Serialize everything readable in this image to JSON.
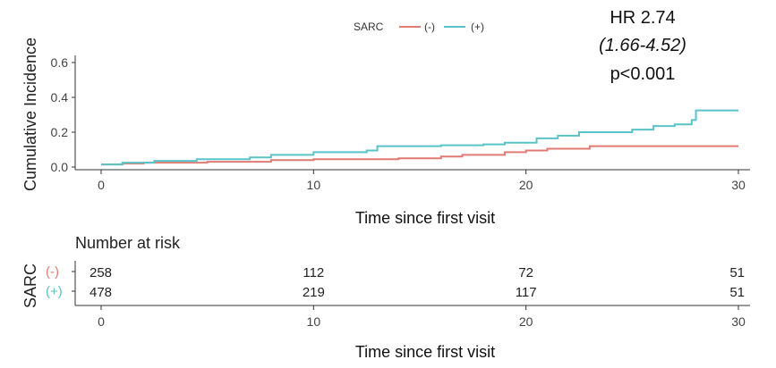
{
  "chart_data": {
    "type": "line",
    "ylabel": "Cumulative Incidence",
    "xlabel": "Time since first visit",
    "xlim": [
      0,
      30
    ],
    "ylim": [
      0,
      0.6
    ],
    "x_ticks": [
      "0",
      "10",
      "20",
      "30"
    ],
    "y_ticks": [
      "0.0",
      "0.2",
      "0.4",
      "0.6"
    ],
    "legend": {
      "title": "SARC",
      "position": "top",
      "entries": [
        "(-)",
        "(+)"
      ]
    },
    "annotation": {
      "hr": "HR 2.74",
      "ci": "(1.66-4.52)",
      "p": "p<0.001"
    },
    "series": [
      {
        "name": "(-)",
        "color": "#e07b74",
        "step": true,
        "x": [
          0,
          1,
          2,
          5,
          8,
          10,
          14,
          16,
          17,
          19,
          20,
          21,
          23,
          30
        ],
        "y": [
          0.015,
          0.02,
          0.025,
          0.03,
          0.04,
          0.045,
          0.05,
          0.06,
          0.07,
          0.085,
          0.095,
          0.105,
          0.12,
          0.12
        ]
      },
      {
        "name": "(+)",
        "color": "#5ac3c8",
        "step": true,
        "x": [
          0,
          1,
          2.5,
          4.5,
          7,
          8,
          10,
          12.5,
          13,
          16,
          18,
          19,
          20.5,
          21.5,
          22.5,
          25,
          26,
          27,
          27.8,
          28,
          30
        ],
        "y": [
          0.015,
          0.025,
          0.035,
          0.045,
          0.055,
          0.07,
          0.085,
          0.095,
          0.12,
          0.125,
          0.13,
          0.14,
          0.165,
          0.18,
          0.2,
          0.215,
          0.235,
          0.245,
          0.27,
          0.325,
          0.325
        ]
      }
    ]
  },
  "risk_table": {
    "title": "Number at risk",
    "group_label": "SARC",
    "xlabel": "Time since first visit",
    "x_ticks": [
      "0",
      "10",
      "20",
      "30"
    ],
    "rows": [
      {
        "name": "(-)",
        "color": "#e07b74",
        "values": [
          "258",
          "112",
          "72",
          "51"
        ]
      },
      {
        "name": "(+)",
        "color": "#5ac3c8",
        "values": [
          "478",
          "219",
          "117",
          "51"
        ]
      }
    ]
  }
}
